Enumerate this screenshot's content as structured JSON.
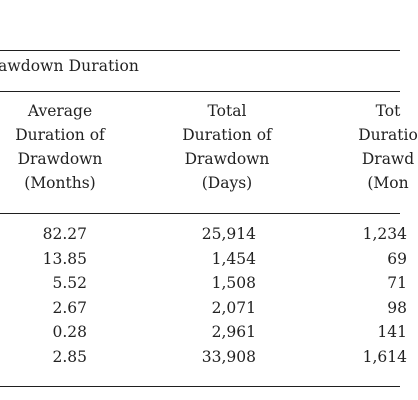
{
  "table": {
    "title": "awdown Duration",
    "headers": [
      [
        "Average",
        "Duration of",
        "Drawdown",
        "(Months)"
      ],
      [
        "Total",
        "Duration of",
        "Drawdown",
        "(Days)"
      ],
      [
        "Tot",
        "Duratio",
        "Drawd",
        "(Mon"
      ]
    ],
    "rows": [
      [
        "82.27",
        "25,914",
        "1,234"
      ],
      [
        "13.85",
        "1,454",
        "69"
      ],
      [
        "5.52",
        "1,508",
        "71"
      ],
      [
        "2.67",
        "2,071",
        "98"
      ],
      [
        "0.28",
        "2,961",
        "141"
      ],
      [
        "2.85",
        "33,908",
        "1,614"
      ]
    ]
  }
}
